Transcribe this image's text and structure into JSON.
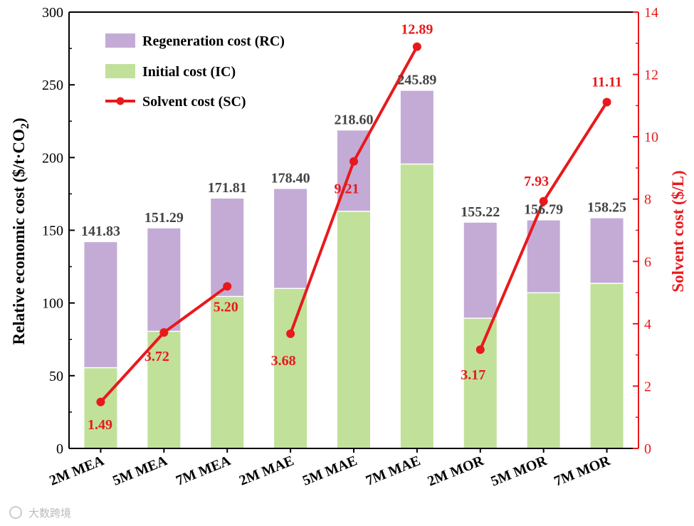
{
  "chart_data": {
    "type": "bar",
    "stacked": true,
    "categories": [
      "2M MEA",
      "5M MEA",
      "7M MEA",
      "2M MAE",
      "5M MAE",
      "7M MAE",
      "2M MOR",
      "5M MOR",
      "7M MOR"
    ],
    "series": [
      {
        "name": "Initial cost (IC)",
        "axis": "left",
        "color": "#c1e09a",
        "values": [
          55.5,
          80.5,
          104.5,
          110,
          163,
          195.5,
          89.5,
          107,
          113.5
        ]
      },
      {
        "name": "Regeneration cost (RC)",
        "axis": "left",
        "color": "#c4abd6",
        "values": [
          86.33,
          70.79,
          67.31,
          68.4,
          55.6,
          50.39,
          65.72,
          49.79,
          44.75
        ]
      }
    ],
    "totals": [
      141.83,
      151.29,
      171.81,
      178.4,
      218.6,
      245.89,
      155.22,
      156.79,
      158.25
    ],
    "total_labels": [
      "141.83",
      "151.29",
      "171.81",
      "178.40",
      "218.60",
      "245.89",
      "155.22",
      "156.79",
      "158.25"
    ],
    "line_series": {
      "name": "Solvent cost (SC)",
      "axis": "right",
      "color": "#e8191c",
      "groups": [
        {
          "indices": [
            0,
            1,
            2
          ],
          "values": [
            1.49,
            3.72,
            5.2
          ],
          "labels": [
            "1.49",
            "3.72",
            "5.20"
          ]
        },
        {
          "indices": [
            3,
            4,
            5
          ],
          "values": [
            3.68,
            9.21,
            12.89
          ],
          "labels": [
            "3.68",
            "9.21",
            "12.89"
          ]
        },
        {
          "indices": [
            6,
            7,
            8
          ],
          "values": [
            3.17,
            7.93,
            11.11
          ],
          "labels": [
            "3.17",
            "7.93",
            "11.11"
          ]
        }
      ]
    },
    "y_left": {
      "label_prefix": "Relative economic cost ($/t·CO",
      "label_sub": "2",
      "label_suffix": ")",
      "lim": [
        0,
        300
      ],
      "ticks": [
        0,
        50,
        100,
        150,
        200,
        250,
        300
      ]
    },
    "y_right": {
      "label": "Solvent cost ($/L)",
      "lim": [
        0,
        14
      ],
      "ticks": [
        0,
        2,
        4,
        6,
        8,
        10,
        12,
        14
      ],
      "color": "#e8191c"
    },
    "legend": {
      "position": "top-left",
      "items": [
        {
          "label": "Regeneration cost (RC)",
          "kind": "box",
          "color": "#c4abd6"
        },
        {
          "label": "Initial cost (IC)",
          "kind": "box",
          "color": "#c1e09a"
        },
        {
          "label": "Solvent cost (SC)",
          "kind": "line",
          "color": "#e8191c"
        }
      ]
    }
  },
  "watermark": "大数跨境"
}
